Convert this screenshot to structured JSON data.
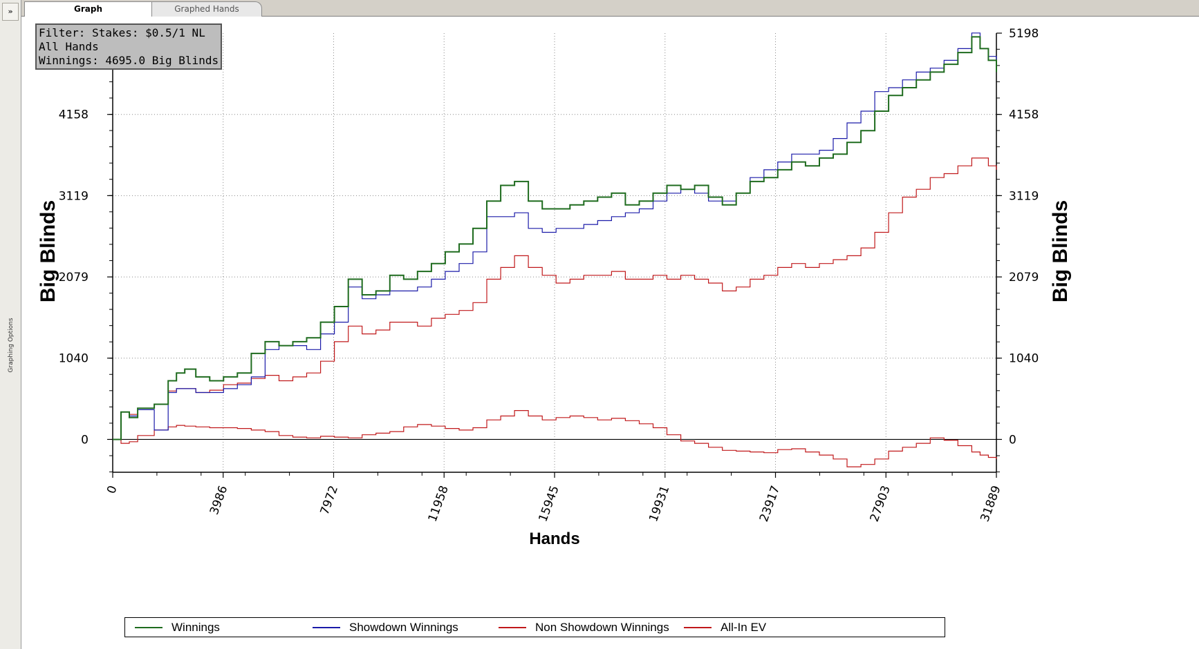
{
  "sidebar": {
    "toggle_label": "»",
    "label": "Graphing Options"
  },
  "tabs": [
    {
      "label": "Graph"
    },
    {
      "label": "Graphed Hands"
    }
  ],
  "info": {
    "line1": "Filter: Stakes: $0.5/1 NL",
    "line2": "All Hands",
    "line3": "Winnings: 4695.0 Big Blinds"
  },
  "colors": {
    "winnings": "#1e6b1e",
    "showdown": "#1a1aa8",
    "nonshowdown": "#c0181a",
    "allin": "#c0181a"
  },
  "chart_data": {
    "type": "line",
    "xlabel": "Hands",
    "ylabel_left": "Big Blinds",
    "ylabel_right": "Big Blinds",
    "xlim": [
      0,
      31889
    ],
    "ylim": [
      -420,
      5198
    ],
    "xticks": [
      "0",
      "3986",
      "7972",
      "11958",
      "15945",
      "19931",
      "23917",
      "27903",
      "31889"
    ],
    "yticks": [
      "0",
      "1040",
      "2079",
      "3119",
      "4158",
      "5198"
    ],
    "grid": true,
    "legend_position": "bottom",
    "series": [
      {
        "name": "Winnings",
        "color": "#1e6b1e",
        "x": [
          0,
          300,
          600,
          900,
          1500,
          2000,
          2300,
          2600,
          3000,
          3500,
          4000,
          4500,
          5000,
          5500,
          6000,
          6500,
          7000,
          7500,
          8000,
          8500,
          9000,
          9500,
          10000,
          10500,
          11000,
          11500,
          12000,
          12500,
          13000,
          13500,
          14000,
          14500,
          15000,
          15500,
          16000,
          16500,
          17000,
          17500,
          18000,
          18500,
          19000,
          19500,
          20000,
          20500,
          21000,
          21500,
          22000,
          22500,
          23000,
          23500,
          24000,
          24500,
          25000,
          25500,
          26000,
          26500,
          27000,
          27500,
          28000,
          28500,
          29000,
          29500,
          30000,
          30500,
          31000,
          31300,
          31600,
          31889
        ],
        "y": [
          0,
          350,
          280,
          400,
          450,
          750,
          850,
          900,
          800,
          750,
          800,
          850,
          1100,
          1250,
          1200,
          1250,
          1300,
          1500,
          1700,
          2050,
          1850,
          1900,
          2100,
          2050,
          2150,
          2250,
          2400,
          2500,
          2700,
          3050,
          3250,
          3300,
          3050,
          2950,
          2950,
          3000,
          3050,
          3100,
          3150,
          3000,
          3050,
          3150,
          3250,
          3200,
          3250,
          3100,
          3000,
          3150,
          3300,
          3350,
          3450,
          3550,
          3500,
          3600,
          3650,
          3800,
          3950,
          4200,
          4400,
          4500,
          4600,
          4700,
          4800,
          4950,
          5150,
          5000,
          4850,
          4700
        ]
      },
      {
        "name": "Showdown Winnings",
        "color": "#1a1aa8",
        "x": [
          0,
          300,
          600,
          900,
          1500,
          2000,
          2300,
          2600,
          3000,
          3500,
          4000,
          4500,
          5000,
          5500,
          6000,
          6500,
          7000,
          7500,
          8000,
          8500,
          9000,
          9500,
          10000,
          10500,
          11000,
          11500,
          12000,
          12500,
          13000,
          13500,
          14000,
          14500,
          15000,
          15500,
          16000,
          16500,
          17000,
          17500,
          18000,
          18500,
          19000,
          19500,
          20000,
          20500,
          21000,
          21500,
          22000,
          22500,
          23000,
          23500,
          24000,
          24500,
          25000,
          25500,
          26000,
          26500,
          27000,
          27500,
          28000,
          28500,
          29000,
          29500,
          30000,
          30500,
          31000,
          31300,
          31600,
          31889
        ],
        "y": [
          0,
          350,
          300,
          380,
          120,
          600,
          650,
          650,
          600,
          600,
          650,
          700,
          800,
          1150,
          1200,
          1200,
          1150,
          1350,
          1500,
          1950,
          1800,
          1850,
          1900,
          1900,
          1950,
          2050,
          2150,
          2250,
          2400,
          2850,
          2850,
          2900,
          2700,
          2650,
          2700,
          2700,
          2750,
          2800,
          2850,
          2900,
          2950,
          3050,
          3150,
          3200,
          3150,
          3050,
          3050,
          3150,
          3350,
          3450,
          3550,
          3650,
          3650,
          3700,
          3850,
          4050,
          4200,
          4450,
          4500,
          4600,
          4700,
          4750,
          4850,
          5000,
          5200,
          5000,
          4900,
          4850
        ]
      },
      {
        "name": "Non Showdown Winnings",
        "color": "#c0181a",
        "x": [
          0,
          300,
          600,
          900,
          1500,
          2000,
          2300,
          2600,
          3000,
          3500,
          4000,
          4500,
          5000,
          5500,
          6000,
          6500,
          7000,
          7500,
          8000,
          8500,
          9000,
          9500,
          10000,
          10500,
          11000,
          11500,
          12000,
          12500,
          13000,
          13500,
          14000,
          14500,
          15000,
          15500,
          16000,
          16500,
          17000,
          17500,
          18000,
          18500,
          19000,
          19500,
          20000,
          20500,
          21000,
          21500,
          22000,
          22500,
          23000,
          23500,
          24000,
          24500,
          25000,
          25500,
          26000,
          26500,
          27000,
          27500,
          28000,
          28500,
          29000,
          29500,
          30000,
          30500,
          31000,
          31300,
          31600,
          31889
        ],
        "y": [
          0,
          350,
          320,
          400,
          450,
          620,
          650,
          650,
          600,
          630,
          700,
          720,
          780,
          820,
          750,
          800,
          850,
          1000,
          1250,
          1450,
          1350,
          1400,
          1500,
          1500,
          1450,
          1550,
          1600,
          1650,
          1750,
          2050,
          2200,
          2350,
          2200,
          2100,
          2000,
          2050,
          2100,
          2100,
          2150,
          2050,
          2050,
          2100,
          2050,
          2100,
          2050,
          2000,
          1900,
          1950,
          2050,
          2100,
          2200,
          2250,
          2200,
          2250,
          2300,
          2350,
          2450,
          2650,
          2900,
          3100,
          3200,
          3350,
          3400,
          3500,
          3600,
          3600,
          3500,
          3450
        ]
      },
      {
        "name": "All-In EV",
        "color": "#c0181a",
        "x": [
          0,
          300,
          600,
          900,
          1500,
          2000,
          2300,
          2600,
          3000,
          3500,
          4000,
          4500,
          5000,
          5500,
          6000,
          6500,
          7000,
          7500,
          8000,
          8500,
          9000,
          9500,
          10000,
          10500,
          11000,
          11500,
          12000,
          12500,
          13000,
          13500,
          14000,
          14500,
          15000,
          15500,
          16000,
          16500,
          17000,
          17500,
          18000,
          18500,
          19000,
          19500,
          20000,
          20500,
          21000,
          21500,
          22000,
          22500,
          23000,
          23500,
          24000,
          24500,
          25000,
          25500,
          26000,
          26500,
          27000,
          27500,
          28000,
          28500,
          29000,
          29500,
          30000,
          30500,
          31000,
          31300,
          31600,
          31889
        ],
        "y": [
          0,
          -50,
          -30,
          50,
          120,
          160,
          180,
          170,
          160,
          150,
          150,
          140,
          120,
          100,
          50,
          30,
          20,
          40,
          30,
          20,
          60,
          80,
          100,
          160,
          190,
          170,
          140,
          120,
          150,
          250,
          300,
          370,
          300,
          250,
          280,
          300,
          280,
          250,
          270,
          240,
          200,
          150,
          60,
          -20,
          -50,
          -100,
          -140,
          -150,
          -160,
          -170,
          -130,
          -120,
          -160,
          -200,
          -250,
          -350,
          -320,
          -250,
          -150,
          -100,
          -50,
          20,
          -10,
          -80,
          -160,
          -200,
          -230,
          -250
        ]
      }
    ]
  }
}
